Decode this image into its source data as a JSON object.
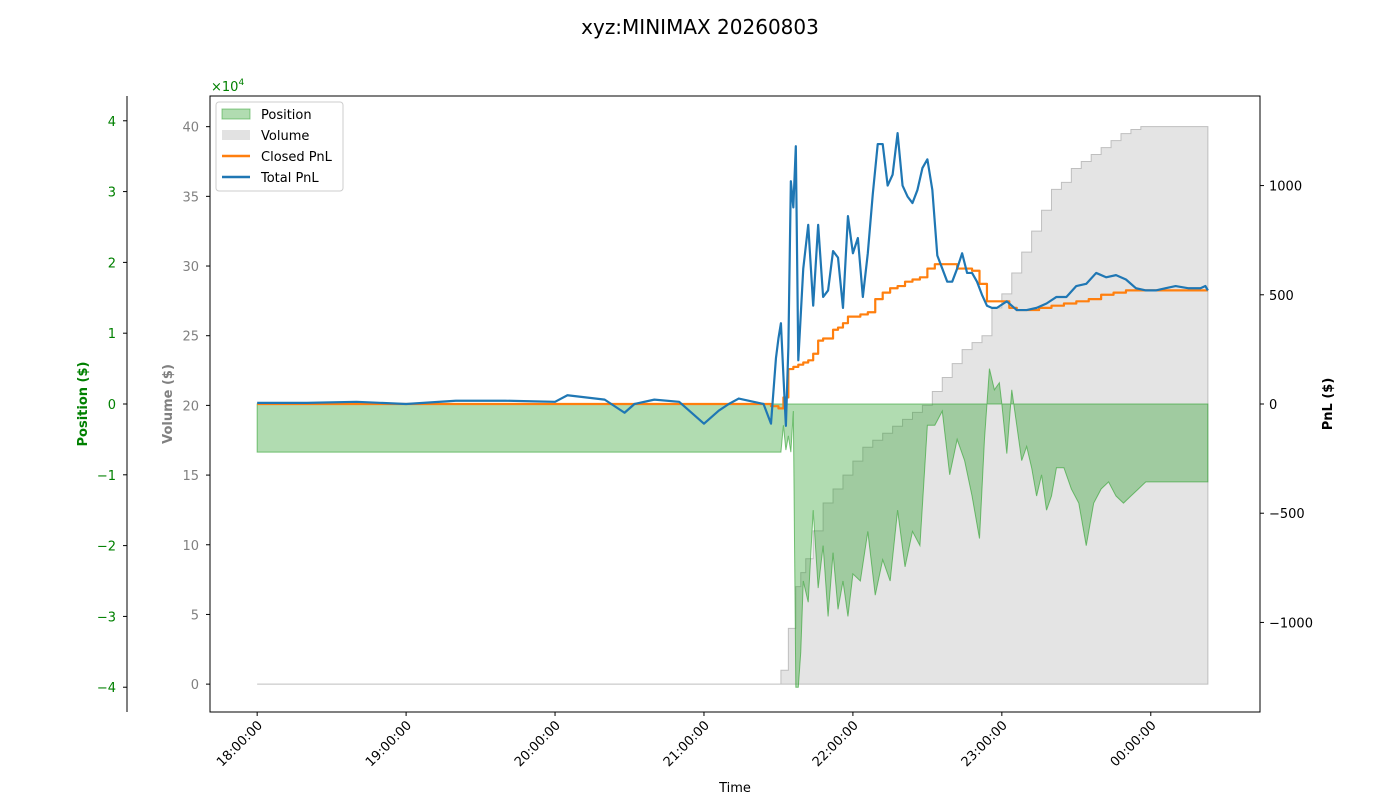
{
  "chart_data": {
    "type": "area",
    "title": "xyz:MINIMAX 20260803",
    "xlabel": "Time",
    "x_ticks": [
      "18:00:00",
      "19:00:00",
      "20:00:00",
      "21:00:00",
      "22:00:00",
      "23:00:00",
      "00:00:00"
    ],
    "x_range": [
      "17:41:00",
      "00:44:00"
    ],
    "axes": {
      "position": {
        "label": "Position ($)",
        "ticks": [
          -4,
          -3,
          -2,
          -1,
          0,
          1,
          2,
          3,
          4
        ],
        "tick_labels": [
          "−4",
          "−3",
          "−2",
          "−1",
          "0",
          "1",
          "2",
          "3",
          "4"
        ],
        "range": [
          -4.35,
          4.35
        ],
        "multiplier": "×10",
        "multiplier_exp": "4",
        "color": "#008000"
      },
      "volume": {
        "label": "Volume ($)",
        "ticks": [
          0,
          5,
          10,
          15,
          20,
          25,
          30,
          35,
          40
        ],
        "range": [
          -2,
          42.2
        ],
        "color": "#808080"
      },
      "pnl": {
        "label": "PnL ($)",
        "ticks": [
          -1000,
          -500,
          0,
          500,
          1000
        ],
        "tick_labels": [
          "−1000",
          "−500",
          "0",
          "500",
          "1000"
        ],
        "range": [
          -1410,
          1410
        ],
        "color": "#000000"
      }
    },
    "legend": {
      "placement": "top-left",
      "items": [
        "Position",
        "Volume",
        "Closed PnL",
        "Total PnL"
      ]
    },
    "colors": {
      "position": "#2ca02c",
      "volume": "#bfbfbf",
      "closed_pnl": "#ff7f0e",
      "total_pnl": "#1f77b4"
    },
    "series": [
      {
        "name": "Position",
        "axis": "position",
        "x": [
          "18:00",
          "18:30",
          "19:00",
          "19:30",
          "20:00",
          "20:30",
          "21:00",
          "21:30",
          "21:31",
          "21:32",
          "21:33",
          "21:34",
          "21:35",
          "21:36",
          "21:37",
          "21:38",
          "21:39",
          "21:40",
          "21:42",
          "21:44",
          "21:46",
          "21:48",
          "21:50",
          "21:52",
          "21:54",
          "21:56",
          "21:58",
          "22:00",
          "22:03",
          "22:06",
          "22:09",
          "22:12",
          "22:15",
          "22:18",
          "22:21",
          "22:24",
          "22:27",
          "22:30",
          "22:33",
          "22:36",
          "22:39",
          "22:42",
          "22:45",
          "22:48",
          "22:51",
          "22:53",
          "22:55",
          "22:57",
          "22:59",
          "23:00",
          "23:02",
          "23:04",
          "23:06",
          "23:08",
          "23:10",
          "23:12",
          "23:14",
          "23:16",
          "23:18",
          "23:20",
          "23:22",
          "23:25",
          "23:28",
          "23:31",
          "23:34",
          "23:37",
          "23:40",
          "23:43",
          "23:46",
          "23:49",
          "23:52",
          "23:55",
          "23:58",
          "00:01",
          "00:10",
          "00:20",
          "00:23"
        ],
        "values": [
          -0.68,
          -0.68,
          -0.68,
          -0.68,
          -0.68,
          -0.68,
          -0.68,
          -0.68,
          -0.68,
          -0.3,
          -0.65,
          -0.45,
          -0.68,
          -0.1,
          -4.0,
          -4.0,
          -3.5,
          -2.5,
          -2.8,
          -1.5,
          -2.6,
          -2.0,
          -3.0,
          -2.1,
          -2.9,
          -2.5,
          -3.0,
          -2.4,
          -2.5,
          -1.8,
          -2.7,
          -2.2,
          -2.5,
          -1.5,
          -2.3,
          -1.8,
          -2.0,
          -0.3,
          -0.3,
          -0.1,
          -1.0,
          -0.5,
          -0.8,
          -1.3,
          -1.9,
          -0.5,
          0.5,
          0.2,
          0.3,
          0.0,
          -0.7,
          0.2,
          -0.3,
          -0.8,
          -0.6,
          -0.9,
          -1.3,
          -1.0,
          -1.5,
          -1.3,
          -0.9,
          -0.9,
          -1.2,
          -1.4,
          -2.0,
          -1.4,
          -1.2,
          -1.1,
          -1.3,
          -1.4,
          -1.3,
          -1.2,
          -1.1,
          -1.1,
          -1.1,
          -1.1,
          -1.1
        ]
      },
      {
        "name": "Volume",
        "axis": "volume",
        "x": [
          "18:00",
          "21:29",
          "21:31",
          "21:34",
          "21:37",
          "21:39",
          "21:41",
          "21:44",
          "21:48",
          "21:52",
          "21:56",
          "22:00",
          "22:04",
          "22:08",
          "22:12",
          "22:16",
          "22:20",
          "22:24",
          "22:28",
          "22:32",
          "22:36",
          "22:40",
          "22:44",
          "22:48",
          "22:52",
          "22:56",
          "23:00",
          "23:04",
          "23:08",
          "23:12",
          "23:16",
          "23:20",
          "23:24",
          "23:28",
          "23:32",
          "23:36",
          "23:40",
          "23:44",
          "23:48",
          "23:52",
          "23:56",
          "00:00",
          "00:10",
          "00:23"
        ],
        "values": [
          0,
          0,
          1,
          4,
          7,
          8,
          9,
          11,
          13,
          14,
          15,
          16,
          17,
          17.5,
          18,
          18.5,
          19,
          19.5,
          20,
          21,
          22,
          23,
          24,
          24.5,
          25,
          27,
          28,
          29.5,
          31,
          32.5,
          34,
          35.5,
          36,
          37,
          37.5,
          38,
          38.5,
          39,
          39.5,
          39.8,
          40,
          40,
          40,
          40
        ]
      },
      {
        "name": "Closed PnL",
        "axis": "pnl",
        "x": [
          "18:00",
          "21:26",
          "21:27",
          "21:30",
          "21:32",
          "21:34",
          "21:36",
          "21:38",
          "21:40",
          "21:42",
          "21:44",
          "21:46",
          "21:48",
          "21:50",
          "21:52",
          "21:54",
          "21:56",
          "21:58",
          "22:00",
          "22:03",
          "22:06",
          "22:09",
          "22:12",
          "22:15",
          "22:18",
          "22:21",
          "22:24",
          "22:27",
          "22:30",
          "22:33",
          "22:36",
          "22:39",
          "22:42",
          "22:45",
          "22:48",
          "22:51",
          "22:54",
          "22:57",
          "22:59",
          "23:03",
          "23:06",
          "23:10",
          "23:15",
          "23:20",
          "23:25",
          "23:30",
          "23:35",
          "23:40",
          "23:45",
          "23:50",
          "23:55",
          "00:00",
          "00:10",
          "00:23"
        ],
        "values": [
          0,
          0,
          -10,
          -20,
          30,
          160,
          170,
          180,
          190,
          200,
          230,
          290,
          300,
          300,
          340,
          350,
          370,
          400,
          400,
          410,
          420,
          480,
          510,
          530,
          540,
          560,
          570,
          580,
          620,
          640,
          640,
          640,
          620,
          620,
          610,
          550,
          470,
          470,
          470,
          440,
          430,
          430,
          440,
          450,
          460,
          470,
          480,
          500,
          510,
          520,
          520,
          520,
          520,
          520
        ]
      },
      {
        "name": "Total PnL",
        "axis": "pnl",
        "x": [
          "18:00",
          "18:20",
          "18:40",
          "19:00",
          "19:20",
          "19:40",
          "20:00",
          "20:05",
          "20:20",
          "20:28",
          "20:32",
          "20:40",
          "20:50",
          "21:00",
          "21:06",
          "21:10",
          "21:14",
          "21:20",
          "21:24",
          "21:27",
          "21:29",
          "21:30",
          "21:31",
          "21:32",
          "21:33",
          "21:34",
          "21:35",
          "21:36",
          "21:37",
          "21:38",
          "21:40",
          "21:42",
          "21:44",
          "21:46",
          "21:48",
          "21:50",
          "21:52",
          "21:54",
          "21:56",
          "21:58",
          "22:00",
          "22:02",
          "22:04",
          "22:06",
          "22:08",
          "22:10",
          "22:12",
          "22:14",
          "22:16",
          "22:18",
          "22:20",
          "22:22",
          "22:24",
          "22:26",
          "22:28",
          "22:30",
          "22:32",
          "22:34",
          "22:36",
          "22:38",
          "22:40",
          "22:42",
          "22:44",
          "22:46",
          "22:48",
          "22:50",
          "22:52",
          "22:54",
          "22:56",
          "22:58",
          "23:02",
          "23:06",
          "23:10",
          "23:14",
          "23:18",
          "23:22",
          "23:26",
          "23:30",
          "23:34",
          "23:38",
          "23:42",
          "23:46",
          "23:50",
          "23:54",
          "23:58",
          "00:02",
          "00:06",
          "00:10",
          "00:15",
          "00:20",
          "00:22",
          "00:23"
        ],
        "values": [
          5,
          5,
          10,
          0,
          15,
          15,
          10,
          40,
          20,
          -40,
          0,
          20,
          10,
          -90,
          -30,
          0,
          25,
          10,
          0,
          -90,
          210,
          300,
          370,
          130,
          -100,
          260,
          1020,
          900,
          1180,
          200,
          620,
          820,
          450,
          820,
          490,
          520,
          700,
          670,
          440,
          860,
          690,
          760,
          490,
          690,
          960,
          1190,
          1190,
          1000,
          1050,
          1240,
          1000,
          950,
          920,
          980,
          1080,
          1120,
          980,
          680,
          620,
          560,
          560,
          620,
          690,
          600,
          600,
          560,
          500,
          450,
          440,
          440,
          470,
          430,
          430,
          440,
          460,
          490,
          490,
          540,
          550,
          600,
          580,
          590,
          570,
          530,
          520,
          520,
          530,
          540,
          530,
          530,
          540,
          520
        ]
      }
    ]
  }
}
